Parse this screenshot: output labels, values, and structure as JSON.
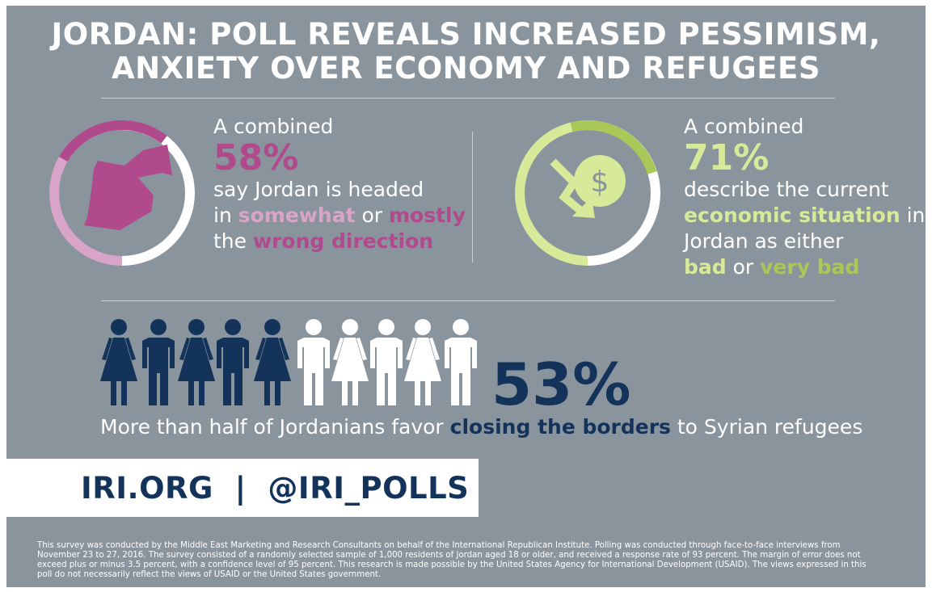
{
  "title": {
    "line1": "JORDAN: POLL REVEALS INCREASED PESSIMISM,",
    "line2": "ANXIETY OVER ECONOMY AND REFUGEES"
  },
  "stat_direction": {
    "lead": "A combined",
    "percent": "58%",
    "line1": "say Jordan is headed",
    "line2_prefix": "in ",
    "somewhat": "somewhat",
    "or": " or ",
    "mostly": "mostly",
    "line3_prefix": "the ",
    "wrong_direction": "wrong direction",
    "value": 58,
    "icon": "jordan-map-icon"
  },
  "stat_economy": {
    "lead": "A combined",
    "percent": "71%",
    "line1": "describe the current",
    "economic_situation": "economic situation",
    "in": " in",
    "line3": "Jordan as either",
    "bad": "bad",
    "or": " or ",
    "very_bad": "very bad",
    "value": 71,
    "icon": "dollar-decline-icon"
  },
  "stat_refugees": {
    "percent": "53%",
    "prefix": "More than half of Jordanians favor ",
    "closing_the_borders": "closing the borders",
    "suffix": " to Syrian refugees",
    "value": 53
  },
  "brand": "IRI.ORG  |  @IRI_POLLS",
  "footnote": "This survey was conducted by the Middle East Marketing and Research Consultants on behalf of the International Republican Institute. Polling was conducted through face-to-face interviews from November 23 to 27, 2016. The survey consisted of a randomly selected sample of 1,000 residents of Jordan aged 18 or older, and received a response rate of 93 percent. The margin of error does not exceed plus or minus 3.5 percent, with a confidence level of 95 percent. This research is made possible by the United States Agency for International Development (USAID). The views expressed in this poll do not necessarily reflect the views of USAID or the United States government.",
  "colors": {
    "background": "#8a949c",
    "pink": "#b14a8c",
    "light_pink": "#d8a4c7",
    "green": "#d7ea9a",
    "lime": "#a8c858",
    "navy": "#14335a",
    "white": "#ffffff"
  }
}
